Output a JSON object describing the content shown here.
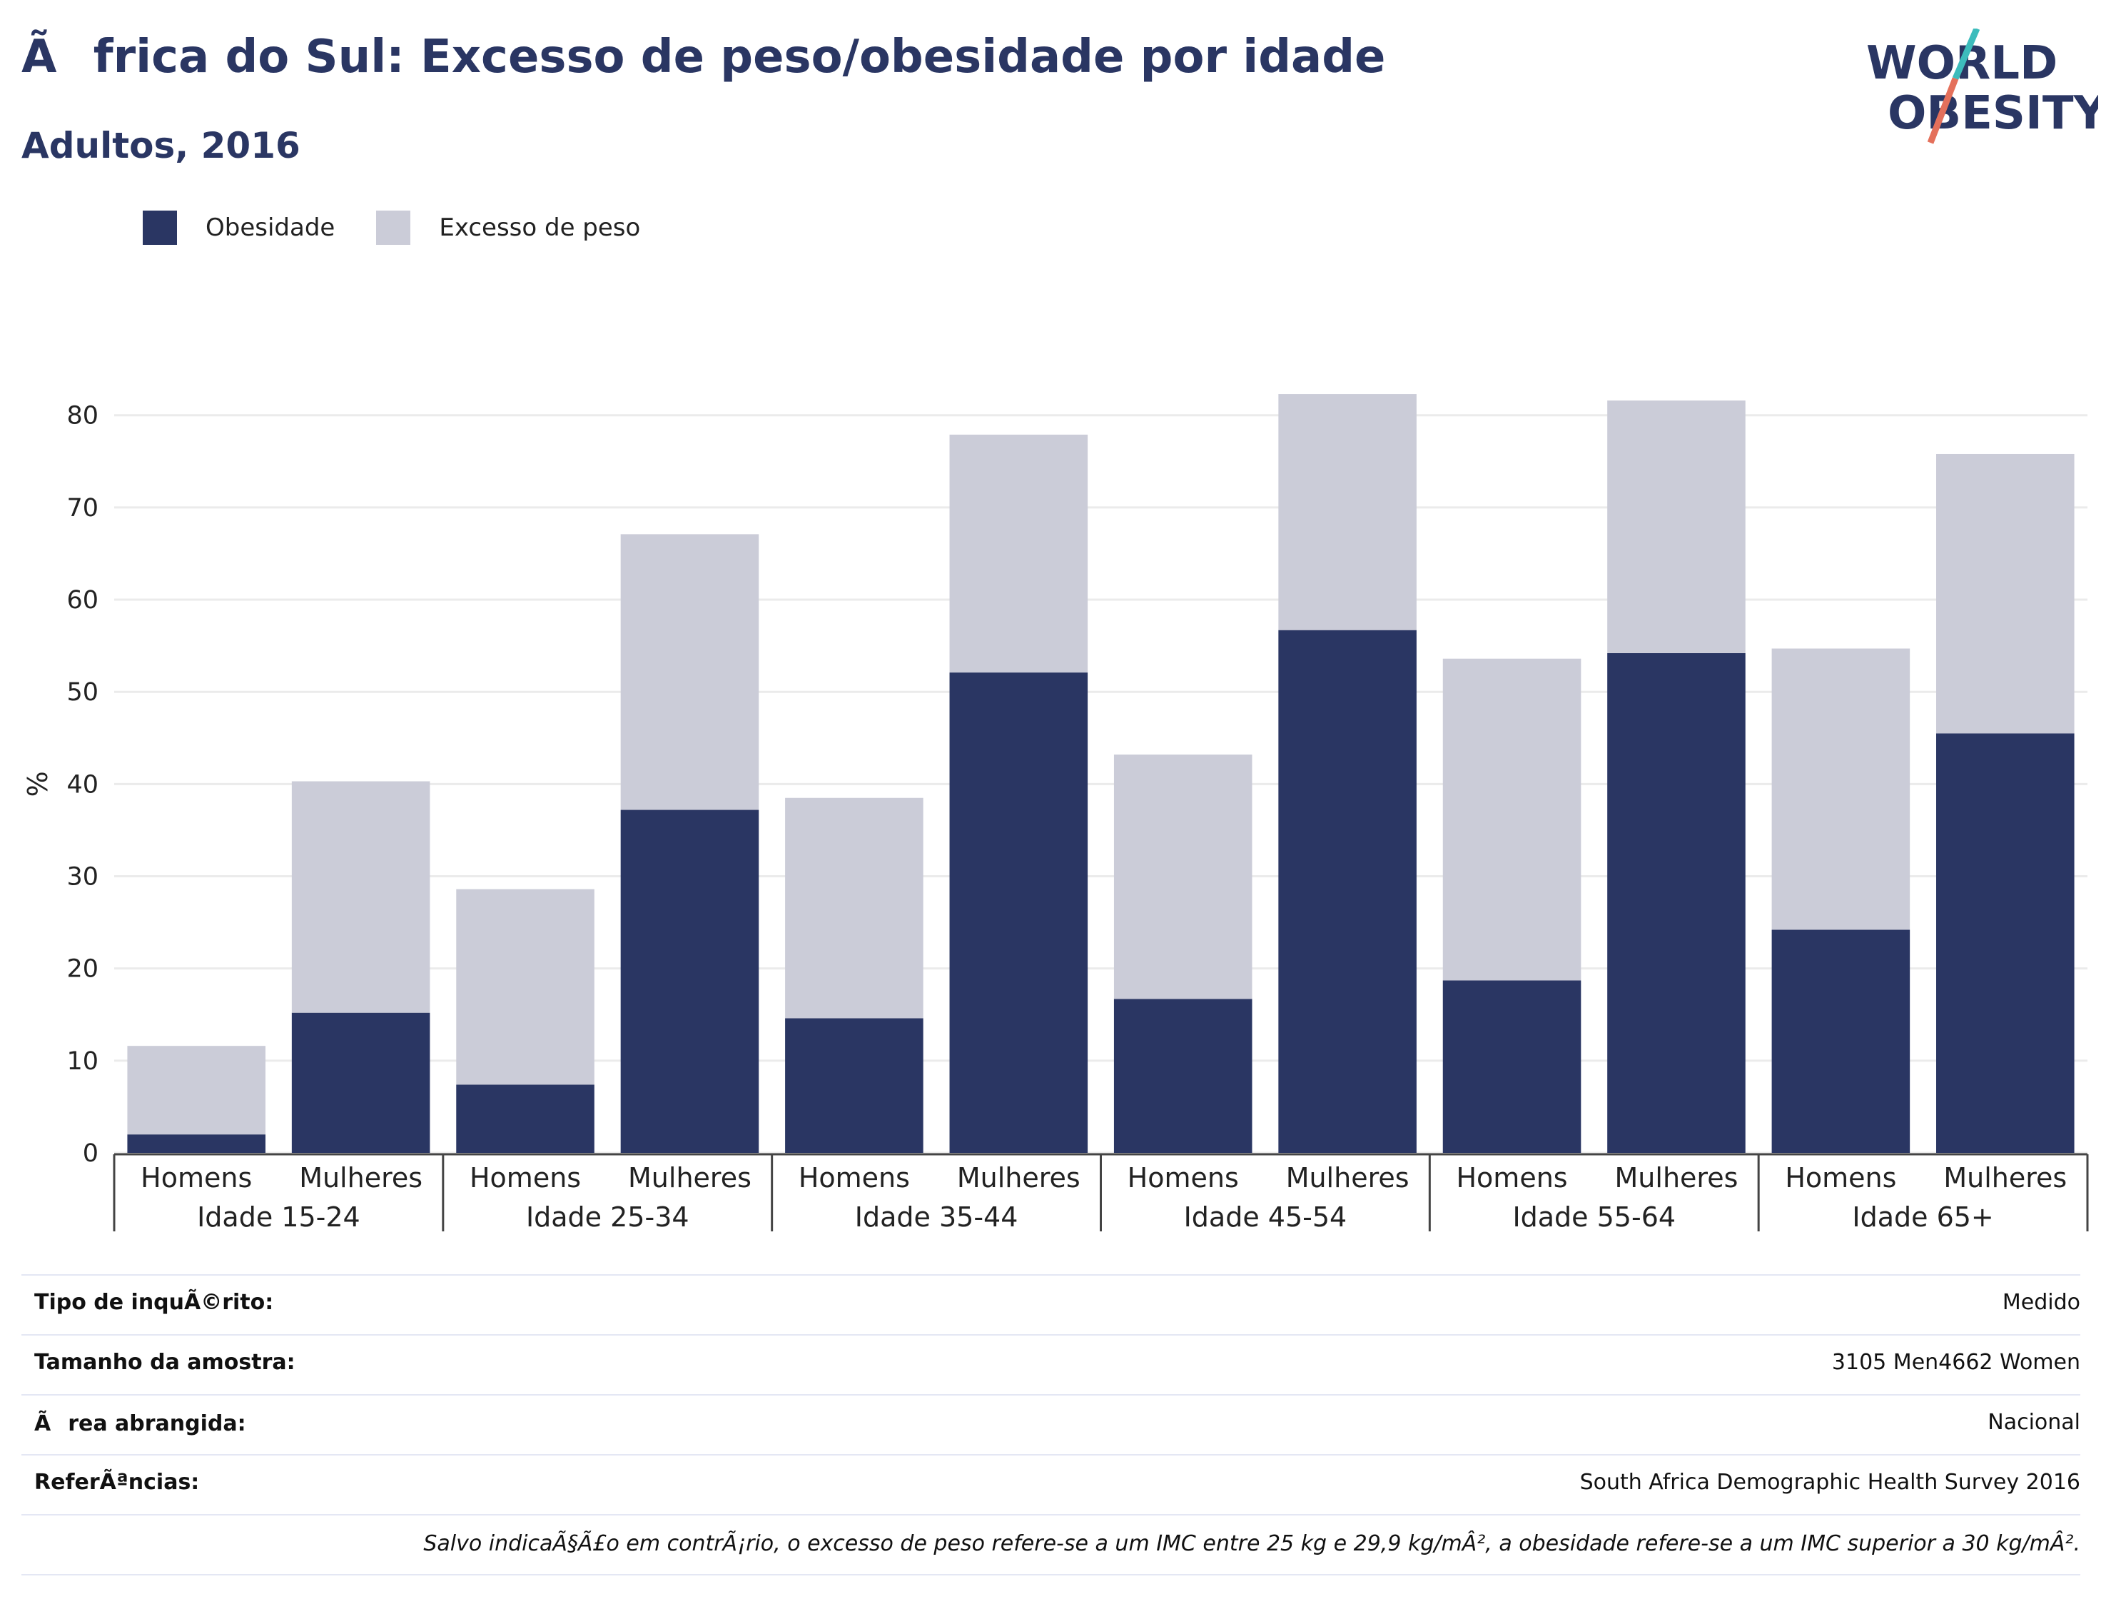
{
  "header": {
    "title": "Ãfrica do Sul: Excesso de peso/obesidade por idade",
    "subtitle": "Adultos, 2016"
  },
  "logo": {
    "line1": "WORLD",
    "line2": "OBESITY",
    "icon": "world-obesity-logo"
  },
  "colors": {
    "obesity": "#2a3663",
    "overweight": "#cbccd8",
    "title": "#2a3663",
    "logo_teal": "#3dbcbc",
    "logo_coral": "#e4705b"
  },
  "legend": [
    {
      "label": "Obesidade",
      "color": "#2a3663"
    },
    {
      "label": "Excesso de peso",
      "color": "#cbccd8"
    }
  ],
  "chart_data": {
    "type": "bar",
    "stacked": true,
    "ylabel": "%",
    "ylim": [
      0,
      83
    ],
    "yticks": [
      0,
      10,
      20,
      30,
      40,
      50,
      60,
      70,
      80
    ],
    "grid": true,
    "legend_position": "top-left",
    "groups": [
      "Idade 15-24",
      "Idade 25-34",
      "Idade 35-44",
      "Idade 45-54",
      "Idade 55-64",
      "Idade 65+"
    ],
    "subcategories": [
      "Homens",
      "Mulheres"
    ],
    "series": [
      {
        "name": "Obesidade",
        "values": [
          2,
          15.2,
          7.4,
          37.2,
          14.6,
          52.1,
          16.7,
          56.7,
          18.7,
          54.2,
          24.2,
          45.5
        ]
      },
      {
        "name": "Excesso de peso",
        "values": [
          9.6,
          25.1,
          21.2,
          29.9,
          23.9,
          25.8,
          26.5,
          25.6,
          34.9,
          27.4,
          30.5,
          30.3
        ]
      }
    ]
  },
  "info": {
    "rows": [
      {
        "label": "Tipo de inquÃ©rito:",
        "value": "Medido"
      },
      {
        "label": "Tamanho da amostra:",
        "value": "3105 Men4662 Women"
      },
      {
        "label": "Ãrea abrangida:",
        "value": "Nacional"
      },
      {
        "label": "ReferÃªncias:",
        "value": "South Africa Demographic Health Survey 2016"
      }
    ],
    "note": "Salvo indicaÃ§Ã£o em contrÃ¡rio, o excesso de peso refere-se a um IMC entre 25 kg e 29,9 kg/mÂ², a obesidade refere-se a um IMC superior a 30 kg/mÂ²."
  }
}
